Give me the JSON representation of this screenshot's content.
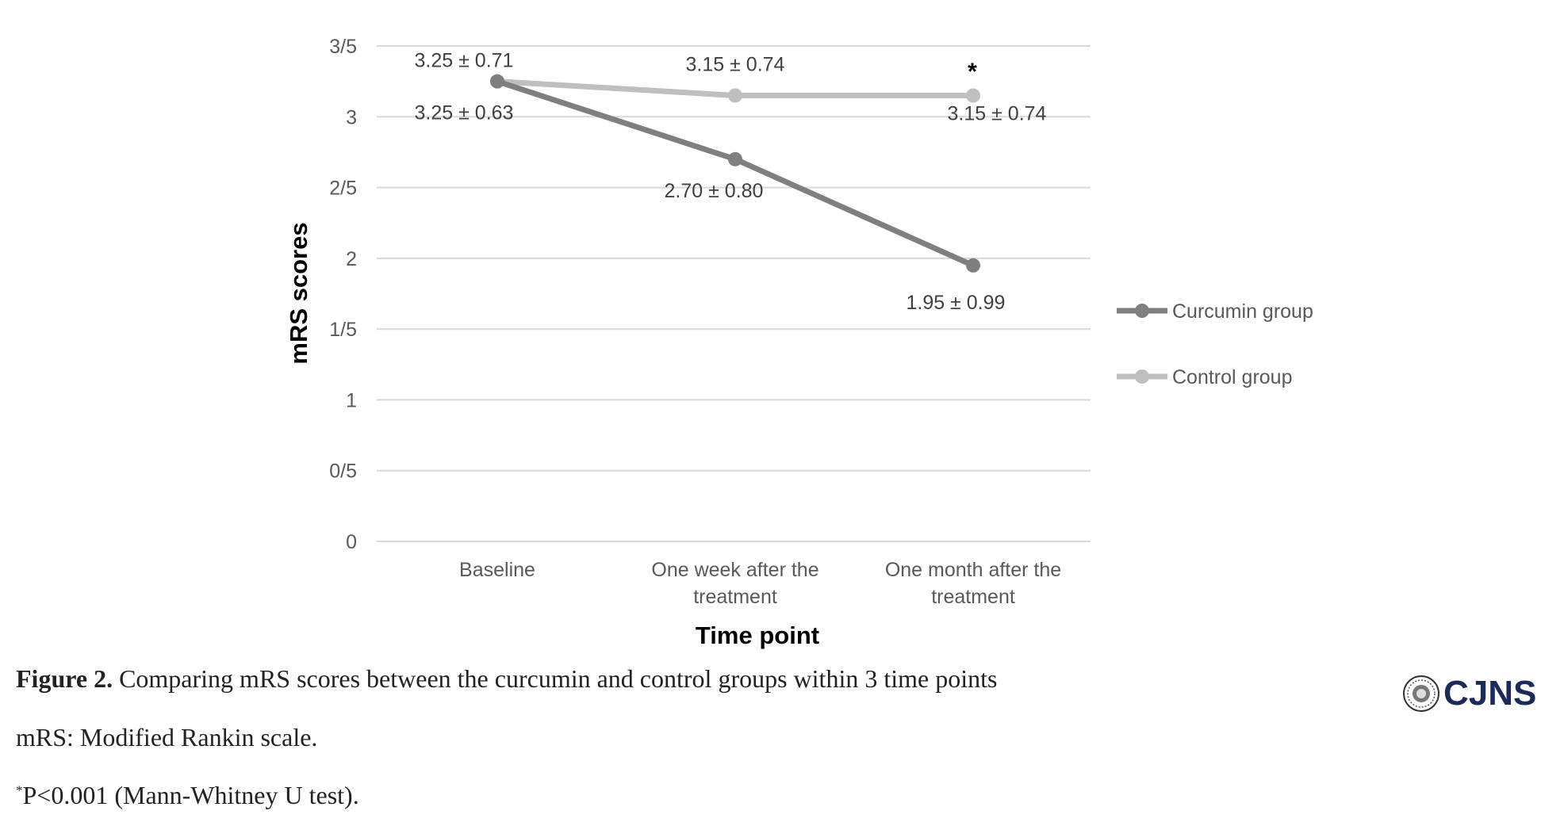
{
  "chart_data": {
    "type": "line",
    "categories": [
      [
        "Baseline"
      ],
      [
        "One week after the",
        "treatment"
      ],
      [
        "One month after the",
        "treatment"
      ]
    ],
    "series": [
      {
        "name": "Curcumin group",
        "values": [
          3.25,
          2.7,
          1.95
        ],
        "labels": [
          "3.25 ± 0.63",
          "2.70 ± 0.80",
          "1.95 ± 0.99"
        ],
        "color": "#7f7f7f"
      },
      {
        "name": "Control group",
        "values": [
          3.25,
          3.15,
          3.15
        ],
        "labels": [
          "3.25 ± 0.71",
          "3.15 ± 0.74",
          "3.15 ± 0.74"
        ],
        "color": "#bfbfbf"
      }
    ],
    "yticks": [
      {
        "value": 0,
        "label": "0"
      },
      {
        "value": 0.5,
        "label": "0/5"
      },
      {
        "value": 1,
        "label": "1"
      },
      {
        "value": 1.5,
        "label": "1/5"
      },
      {
        "value": 2,
        "label": "2"
      },
      {
        "value": 2.5,
        "label": "2/5"
      },
      {
        "value": 3,
        "label": "3"
      },
      {
        "value": 3.5,
        "label": "3/5"
      }
    ],
    "ylim": [
      0,
      3.5
    ],
    "xlabel": "Time point",
    "ylabel": "mRS scores",
    "annotation": "*",
    "grid": true,
    "legend_position": "right"
  },
  "caption": {
    "figure_label": "Figure 2.",
    "figure_text": " Comparing mRS scores between the curcumin and control groups within 3 time points",
    "abbrev": "mRS: Modified Rankin scale.",
    "footnote_mark": "*",
    "footnote_text": "P<0.001 (Mann-Whitney U test)."
  },
  "logo": {
    "text": "CJNS",
    "icon": "journal-seal-icon"
  }
}
